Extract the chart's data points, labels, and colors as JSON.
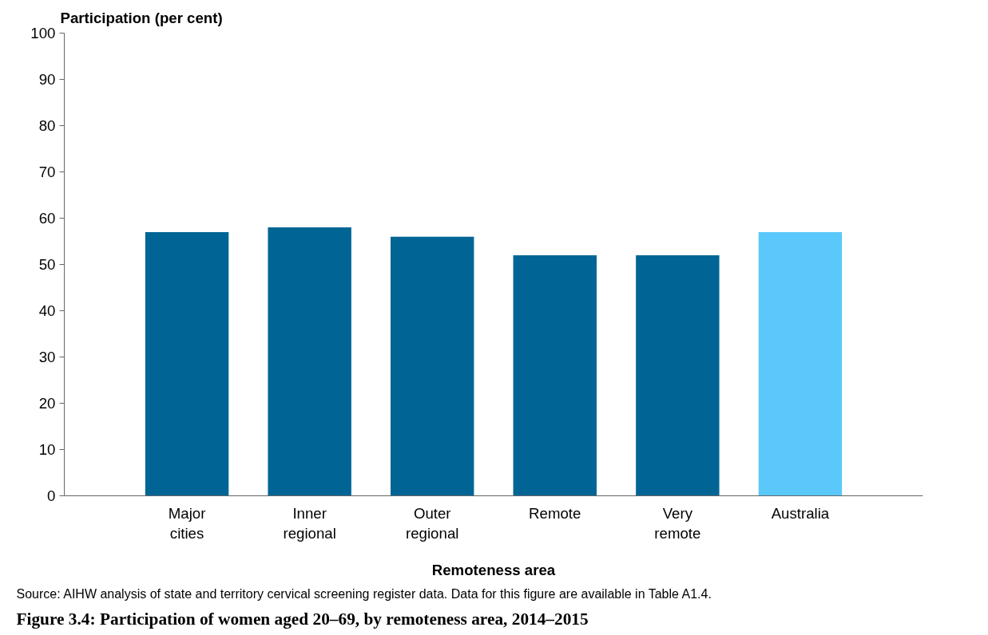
{
  "chart_data": {
    "type": "bar",
    "title": "Figure 3.4: Participation of women aged 20–69, by remoteness area, 2014–2015",
    "ylabel": "Participation (per cent)",
    "xlabel": "Remoteness area",
    "categories": [
      "Major cities",
      "Inner regional",
      "Outer regional",
      "Remote",
      "Very remote",
      "Australia"
    ],
    "values": [
      57,
      58,
      56,
      52,
      52,
      57
    ],
    "colors": [
      "#006595",
      "#006595",
      "#006595",
      "#006595",
      "#006595",
      "#5bc8fb"
    ],
    "ylim": [
      0,
      100
    ],
    "yticks": [
      0,
      10,
      20,
      30,
      40,
      50,
      60,
      70,
      80,
      90,
      100
    ],
    "grid": false,
    "annotations": [
      "Source: AIHW analysis of state and territory cervical screening register data. Data for this figure are available in Table A1.4."
    ]
  }
}
